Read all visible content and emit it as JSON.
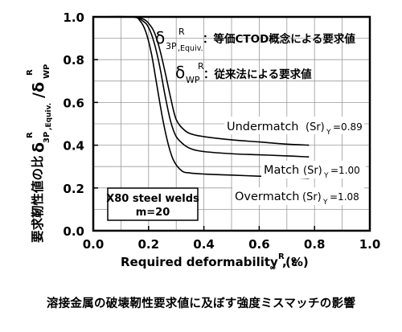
{
  "chart_data": {
    "type": "line",
    "xlabel": "Required deformability , ε",
    "xlabel_sub": "∞",
    "xlabel_sup": "R",
    "xlabel_unit": " (%)",
    "ylabel_jp": "要求靭性値の比",
    "ylabel_sym": "δ",
    "ylabel_num_sub": "3P",
    "ylabel_num_sub2": ",Equiv.",
    "ylabel_sup": "R",
    "ylabel_slash": "/δ",
    "ylabel_den_sub": "WP",
    "ylabel_den_sup": "R",
    "xlim": [
      0.0,
      1.0
    ],
    "ylim": [
      0.0,
      1.0
    ],
    "xticks": [
      "0.0",
      "0.2",
      "0.4",
      "0.6",
      "0.8",
      "1.0"
    ],
    "yticks": [
      "0.0",
      "0.2",
      "0.4",
      "0.6",
      "0.8",
      "1.0"
    ],
    "grid": true,
    "series": [
      {
        "name": "Undermatch",
        "sub_label": "(Sr)",
        "sub_index": "Y",
        "value_text": "=0.89",
        "x": [
          0.0,
          0.14,
          0.18,
          0.2,
          0.22,
          0.24,
          0.26,
          0.28,
          0.3,
          0.33,
          0.36,
          0.4,
          0.5,
          0.6,
          0.7,
          0.78
        ],
        "y": [
          1.0,
          1.0,
          0.99,
          0.97,
          0.93,
          0.85,
          0.74,
          0.62,
          0.52,
          0.47,
          0.45,
          0.44,
          0.425,
          0.415,
          0.405,
          0.4
        ]
      },
      {
        "name": "Match",
        "sub_label": "(Sr)",
        "sub_index": "Y",
        "value_text": "=1.00",
        "x": [
          0.0,
          0.14,
          0.18,
          0.2,
          0.22,
          0.24,
          0.26,
          0.28,
          0.3,
          0.33,
          0.36,
          0.4,
          0.5,
          0.6,
          0.7,
          0.78
        ],
        "y": [
          1.0,
          1.0,
          0.98,
          0.95,
          0.88,
          0.77,
          0.63,
          0.51,
          0.44,
          0.4,
          0.38,
          0.37,
          0.36,
          0.355,
          0.35,
          0.345
        ]
      },
      {
        "name": "Overmatch",
        "sub_label": "(Sr)",
        "sub_index": "Y",
        "value_text": "=1.08",
        "x": [
          0.0,
          0.14,
          0.17,
          0.19,
          0.21,
          0.23,
          0.25,
          0.27,
          0.29,
          0.32,
          0.35,
          0.4,
          0.5,
          0.6,
          0.7,
          0.78
        ],
        "y": [
          1.0,
          1.0,
          0.98,
          0.93,
          0.83,
          0.68,
          0.53,
          0.41,
          0.33,
          0.28,
          0.27,
          0.265,
          0.26,
          0.255,
          0.25,
          0.245
        ]
      }
    ],
    "legend": {
      "equiv_sym": "δ",
      "equiv_sub": "3P",
      "equiv_sub2": ",Equiv.",
      "equiv_sup": "R",
      "equiv_text": "：等価CTOD概念による要求値",
      "wp_sym": "δ",
      "wp_sub": "WP",
      "wp_sup": "R",
      "wp_text": "：従来法による要求値"
    },
    "annotation_box": {
      "line1": "X80 steel welds",
      "line2": "m=20"
    }
  },
  "caption": "溶接金属の破壊靭性要求値に及ぼす強度ミスマッチの影響"
}
